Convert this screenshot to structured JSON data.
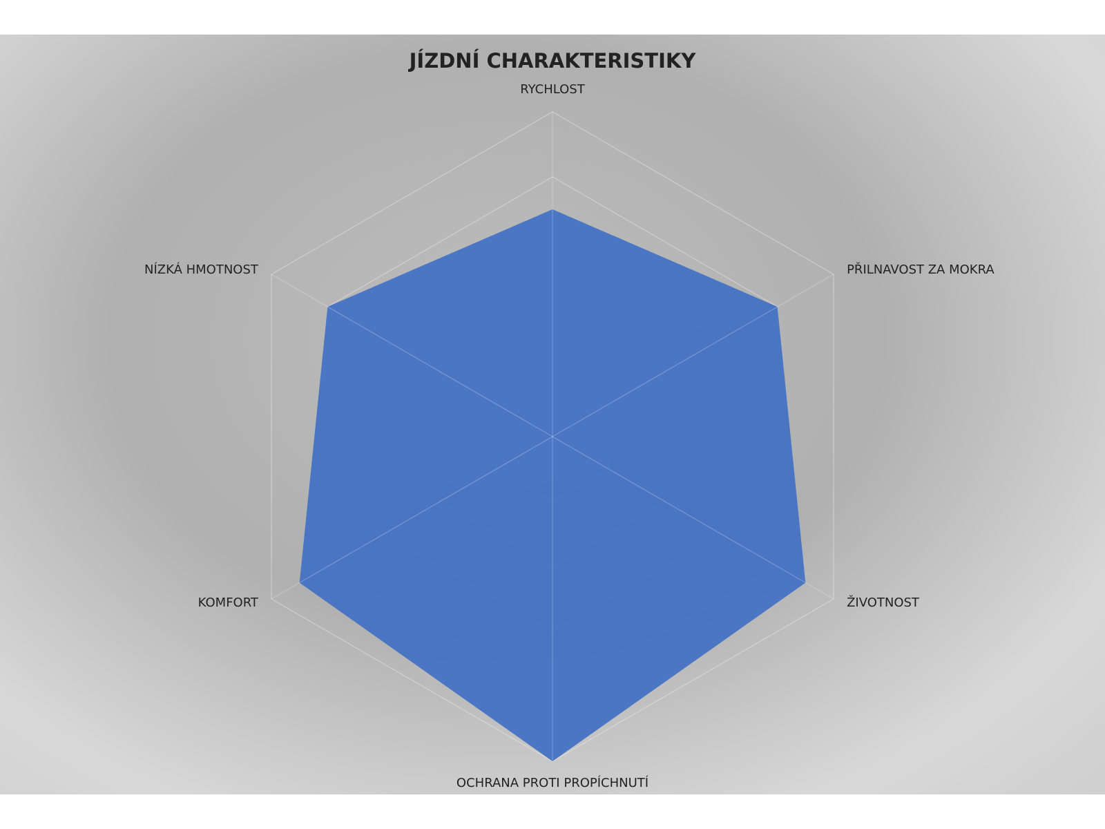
{
  "chart_data": {
    "type": "radar",
    "title": "JÍZDNÍ CHARAKTERISTIKY",
    "categories": [
      "RYCHLOST",
      "PŘILNAVOST ZA MOKRA",
      "ŽIVOTNOST",
      "OCHRANA PROTI PROPÍCHNUTÍ",
      "KOMFORT",
      "NÍZKÁ HMOTNOST"
    ],
    "values": [
      3.5,
      4,
      4.5,
      5,
      4.5,
      4
    ],
    "color": "#4472c4",
    "ylim": [
      0,
      5
    ],
    "yticks": [
      0,
      1,
      2,
      3,
      4,
      5
    ],
    "grid": true
  }
}
